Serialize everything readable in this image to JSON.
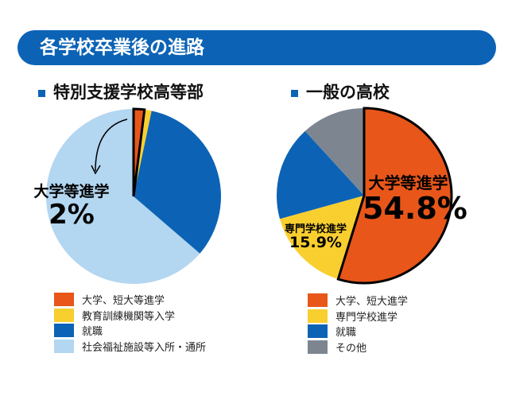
{
  "title": "各学校卒業後の進路",
  "chart_data": [
    {
      "type": "pie",
      "title": "特別支援学校高等部",
      "categories": [
        "大学、短大等進学",
        "教育訓練機関等入学",
        "就職",
        "社会福祉施設等入所・通所"
      ],
      "values": [
        2,
        1.3,
        33,
        63.7
      ],
      "colors": [
        "#e8561a",
        "#f9cf30",
        "#0c63b5",
        "#b3d6f1"
      ],
      "annotation": {
        "label": "大学等進学",
        "value": "2%"
      }
    },
    {
      "type": "pie",
      "title": "一般の高校",
      "categories": [
        "大学、短大進学",
        "専門学校進学",
        "就職",
        "その他"
      ],
      "values": [
        54.8,
        15.9,
        17.5,
        11.8
      ],
      "colors": [
        "#e8561a",
        "#f9cf30",
        "#0c63b5",
        "#7d8690"
      ],
      "annotations": [
        {
          "label": "大学等進学",
          "value": "54.8%"
        },
        {
          "label": "専門学校進学",
          "value": "15.9%"
        }
      ]
    }
  ]
}
